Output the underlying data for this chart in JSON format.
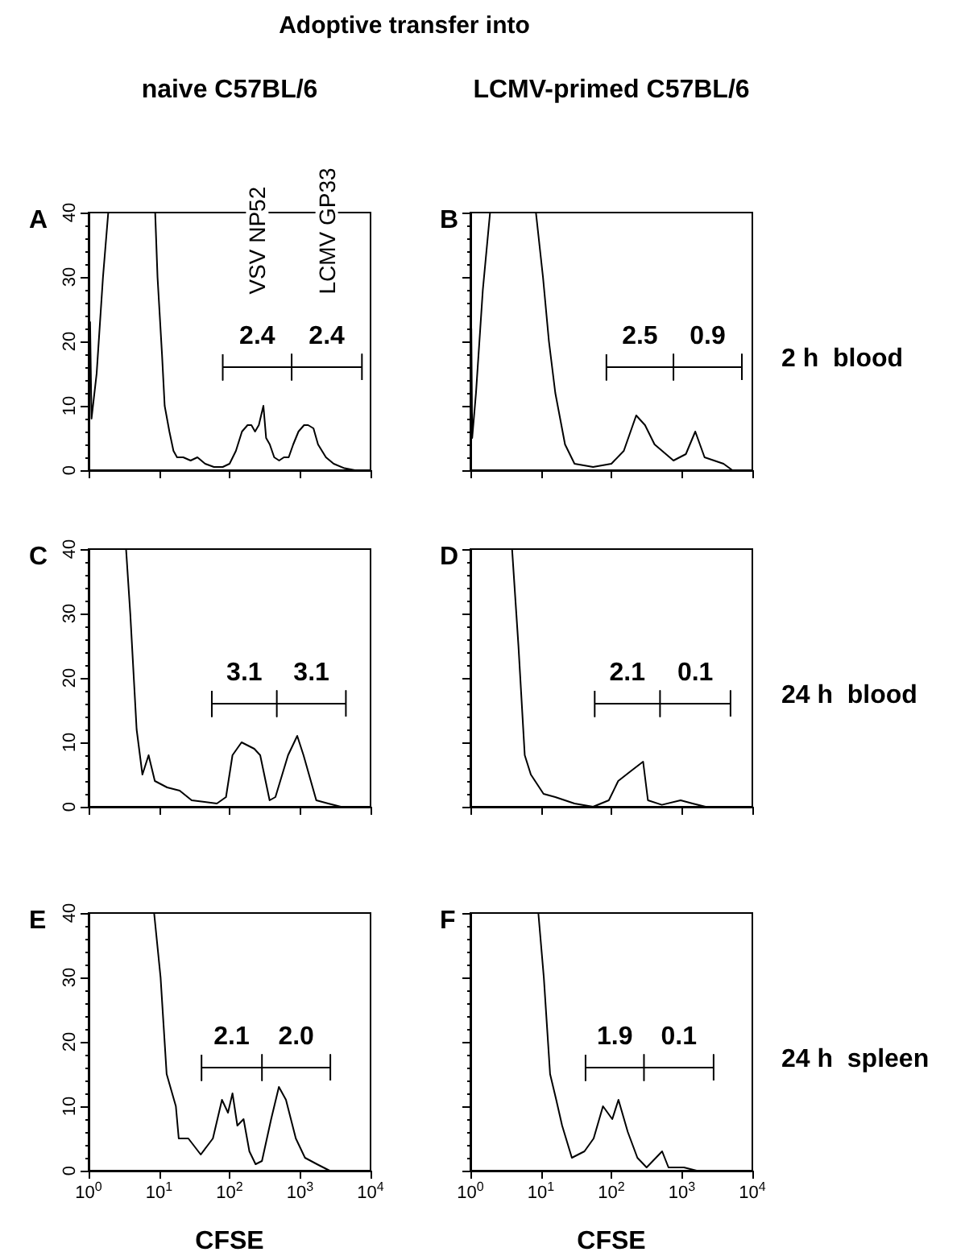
{
  "chart_data": [
    {
      "type": "line",
      "title": "A",
      "subtitle": "naive C57BL/6",
      "annotations": [
        "Adoptive transfer into",
        "VSV NP52",
        "LCMV GP33",
        {
          "text": "2.4",
          "x": 247,
          "y": 16
        },
        {
          "text": "2.4",
          "x": 2390,
          "y": 16
        }
      ],
      "xlim": [
        1,
        10000
      ],
      "xticks": [
        {
          "value": 1,
          "label": null
        },
        {
          "value": 10,
          "label": null
        },
        {
          "value": 100,
          "label": null
        },
        {
          "value": 1000,
          "label": null
        },
        {
          "value": 10000,
          "label": null
        }
      ],
      "ylim": [
        0,
        40
      ],
      "yticks": [
        0,
        10,
        20,
        30,
        40
      ],
      "log": "x",
      "tick_labels": "y",
      "marker": "none",
      "series": [
        {
          "color": "#000000",
          "x": [
            1,
            1.05,
            1.1,
            1.3,
            1.6,
            1.9,
            3,
            5,
            8.8,
            9.5,
            11,
            12,
            14,
            16,
            18,
            22,
            28,
            35,
            45,
            60,
            80,
            100,
            123,
            150,
            180,
            204,
            230,
            260,
            302,
            330,
            372,
            430,
            505,
            590,
            690,
            800,
            950,
            1140,
            1300,
            1550,
            1800,
            2330,
            3000,
            4270,
            6000,
            7800,
            10000
          ],
          "values": [
            7,
            23,
            8,
            15,
            30,
            40,
            40,
            40,
            40,
            30,
            18,
            10,
            6,
            3,
            2,
            2,
            1.5,
            2,
            1,
            0.5,
            0.5,
            1,
            3,
            6,
            7,
            7,
            6,
            7,
            10,
            5,
            4,
            2,
            1.5,
            2,
            2,
            4,
            6,
            7,
            7,
            6.5,
            4,
            2,
            1,
            0.3,
            0,
            0,
            0
          ]
        },
        {
          "color": "#000000",
          "x": [
            80,
            80,
            80,
            760,
            760,
            760,
            760,
            7550,
            7550,
            7550
          ],
          "values": [
            18,
            14,
            16,
            16,
            18,
            14,
            16,
            16,
            18,
            14
          ]
        }
      ]
    },
    {
      "type": "line",
      "title": "B",
      "subtitle": "LCMV-primed C57BL/6",
      "y2label": "2 h  blood",
      "annotations": [
        {
          "text": "2.5",
          "x": 254,
          "y": 16
        },
        {
          "text": "0.9",
          "x": 2320,
          "y": 16
        }
      ],
      "xlim": [
        1,
        10000
      ],
      "xticks": [
        {
          "value": 1,
          "label": null
        },
        {
          "value": 10,
          "label": null
        },
        {
          "value": 100,
          "label": null
        },
        {
          "value": 1000,
          "label": null
        },
        {
          "value": 10000,
          "label": null
        }
      ],
      "ylim": [
        0,
        40
      ],
      "yticks": [
        0,
        10,
        20,
        30,
        40
      ],
      "log": "x",
      "tick_labels": false,
      "marker": "none",
      "series": [
        {
          "color": "#000000",
          "x": [
            1,
            1.03,
            1.06,
            1.2,
            1.5,
            1.9,
            3,
            5,
            8.5,
            10.7,
            13,
            16,
            22,
            30,
            55,
            100,
            150,
            225,
            300,
            410,
            760,
            1140,
            1550,
            2100,
            3900,
            5200,
            10000
          ],
          "values": [
            5,
            22,
            5,
            12,
            28,
            40,
            40,
            40,
            40,
            30,
            20,
            12,
            4,
            1,
            0.5,
            1,
            3,
            8.5,
            7,
            4,
            1.5,
            2.5,
            6,
            2,
            1,
            0,
            0
          ]
        },
        {
          "color": "#000000",
          "x": [
            85,
            85,
            85,
            760,
            760,
            760,
            760,
            7100,
            7100,
            7100
          ],
          "values": [
            18,
            14,
            16,
            16,
            18,
            14,
            16,
            16,
            18,
            14
          ]
        }
      ]
    },
    {
      "type": "line",
      "title": "C",
      "annotations": [
        {
          "text": "3.1",
          "x": 162,
          "y": 16
        },
        {
          "text": "3.1",
          "x": 1450,
          "y": 16
        }
      ],
      "xlim": [
        1,
        10000
      ],
      "xticks": [
        {
          "value": 1,
          "label": null
        },
        {
          "value": 10,
          "label": null
        },
        {
          "value": 100,
          "label": null
        },
        {
          "value": 1000,
          "label": null
        },
        {
          "value": 10000,
          "label": null
        }
      ],
      "ylim": [
        0,
        40
      ],
      "yticks": [
        0,
        10,
        20,
        30,
        40
      ],
      "log": "x",
      "tick_labels": "y",
      "marker": "none",
      "series": [
        {
          "color": "#000000",
          "x": [
            1,
            2,
            3.4,
            3.9,
            4.8,
            5.8,
            7.1,
            8.7,
            13,
            19.6,
            29,
            66,
            89,
            110,
            148,
            224,
            272,
            370,
            447,
            676,
            912,
            1120,
            1700,
            2510,
            3800,
            10000
          ],
          "values": [
            40,
            40,
            40,
            30,
            12,
            5,
            8,
            4,
            3,
            2.5,
            1,
            0.5,
            1.5,
            8,
            10,
            9,
            8,
            1,
            1.5,
            8,
            11,
            8,
            1,
            0.5,
            0,
            0
          ]
        },
        {
          "color": "#000000",
          "x": [
            56,
            56,
            56,
            468,
            468,
            468,
            468,
            4470,
            4470,
            4470
          ],
          "values": [
            18,
            14,
            16,
            16,
            18,
            14,
            16,
            16,
            18,
            14
          ]
        }
      ]
    },
    {
      "type": "line",
      "title": "D",
      "y2label": "24 h  blood",
      "annotations": [
        {
          "text": "2.1",
          "x": 168,
          "y": 16
        },
        {
          "text": "0.1",
          "x": 1550,
          "y": 16
        }
      ],
      "xlim": [
        1,
        10000
      ],
      "xticks": [
        {
          "value": 1,
          "label": null
        },
        {
          "value": 10,
          "label": null
        },
        {
          "value": 100,
          "label": null
        },
        {
          "value": 1000,
          "label": null
        },
        {
          "value": 10000,
          "label": null
        }
      ],
      "ylim": [
        0,
        40
      ],
      "yticks": [
        0,
        10,
        20,
        30,
        40
      ],
      "log": "x",
      "tick_labels": false,
      "marker": "none",
      "series": [
        {
          "color": "#000000",
          "x": [
            1,
            2,
            3.9,
            4.8,
            5.9,
            7.2,
            10.9,
            16,
            30,
            55,
            92,
            125,
            187,
            282,
            330,
            520,
            960,
            1420,
            2170,
            10000
          ],
          "values": [
            40,
            40,
            40,
            25,
            8,
            5,
            2,
            1.5,
            0.5,
            0,
            1,
            4,
            5.5,
            7,
            1,
            0.3,
            1,
            0.5,
            0,
            0
          ]
        },
        {
          "color": "#000000",
          "x": [
            58,
            58,
            58,
            490,
            490,
            490,
            490,
            4900,
            4900,
            4900
          ],
          "values": [
            18,
            14,
            16,
            16,
            18,
            14,
            16,
            16,
            18,
            14
          ]
        }
      ]
    },
    {
      "type": "line",
      "title": "E",
      "xlabel": "CFSE",
      "annotations": [
        {
          "text": "2.1",
          "x": 107,
          "y": 16
        },
        {
          "text": "2.0",
          "x": 880,
          "y": 16
        }
      ],
      "xlim": [
        1,
        10000
      ],
      "xticks": [
        {
          "value": 1,
          "label": "10$^{0}$"
        },
        {
          "value": 10,
          "label": "10$^{1}$"
        },
        {
          "value": 100,
          "label": "10$^{2}$"
        },
        {
          "value": 1000,
          "label": "10$^{3}$"
        },
        {
          "value": 10000,
          "label": "10$^{4}$"
        }
      ],
      "ylim": [
        0,
        40
      ],
      "yticks": [
        0,
        10,
        20,
        30,
        40
      ],
      "log": "x",
      "marker": "none",
      "series": [
        {
          "color": "#000000",
          "x": [
            1,
            3,
            8.5,
            10.5,
            12.8,
            17.3,
            19,
            26,
            39,
            58,
            78,
            95,
            110,
            129,
            158,
            191,
            234,
            288,
            389,
            501,
            631,
            871,
            1175,
            1740,
            2630,
            10000
          ],
          "values": [
            40,
            40,
            40,
            30,
            15,
            10,
            5,
            5,
            2.5,
            5,
            11,
            9,
            12,
            7,
            8,
            3,
            1,
            1.5,
            8,
            13,
            11,
            5,
            2,
            1,
            0,
            0
          ]
        },
        {
          "color": "#000000",
          "x": [
            40,
            40,
            40,
            288,
            288,
            288,
            288,
            2690,
            2690,
            2690
          ],
          "values": [
            18,
            14,
            16,
            16,
            18,
            14,
            16,
            16,
            18,
            14
          ]
        }
      ]
    },
    {
      "type": "line",
      "title": "F",
      "xlabel": "CFSE",
      "y2label": "24 h  spleen",
      "annotations": [
        {
          "text": "1.9",
          "x": 112,
          "y": 16
        },
        {
          "text": "0.1",
          "x": 905,
          "y": 16
        }
      ],
      "xlim": [
        1,
        10000
      ],
      "xticks": [
        {
          "value": 1,
          "label": "10$^{0}$"
        },
        {
          "value": 10,
          "label": "10$^{1}$"
        },
        {
          "value": 100,
          "label": "10$^{2}$"
        },
        {
          "value": 1000,
          "label": "10$^{3}$"
        },
        {
          "value": 10000,
          "label": "10$^{4}$"
        }
      ],
      "ylim": [
        0,
        40
      ],
      "yticks": [
        0,
        10,
        20,
        30,
        40
      ],
      "log": "x",
      "tick_labels": "x",
      "marker": "none",
      "series": [
        {
          "color": "#000000",
          "x": [
            1,
            3,
            9.2,
            11,
            13.5,
            16.5,
            20,
            27.5,
            41.5,
            56,
            76,
            103,
            126,
            171,
            234,
            316,
            525,
            646,
            1070,
            1620,
            10000
          ],
          "values": [
            40,
            40,
            40,
            30,
            15,
            11,
            7,
            2,
            3,
            5,
            10,
            8,
            11,
            6,
            2,
            0.5,
            3,
            0.5,
            0.5,
            0,
            0
          ]
        },
        {
          "color": "#000000",
          "x": [
            43,
            43,
            43,
            290,
            290,
            290,
            290,
            2820,
            2820,
            2820
          ],
          "values": [
            18,
            14,
            16,
            16,
            18,
            14,
            16,
            16,
            18,
            14
          ]
        }
      ]
    }
  ]
}
